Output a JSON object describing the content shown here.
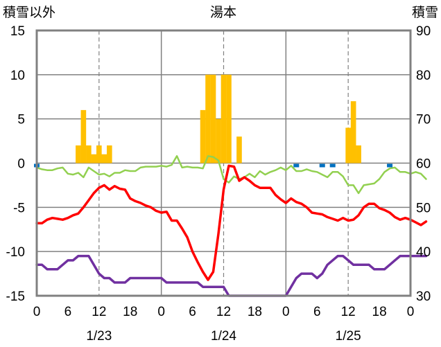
{
  "chart_data": {
    "type": "line",
    "title": "湯本",
    "left_axis_label": "積雪以外",
    "right_axis_label": "積雪",
    "left_ylim": [
      -15,
      15
    ],
    "left_ticks": [
      "15",
      "10",
      "5",
      "0",
      "-5",
      "-10",
      "-15"
    ],
    "right_ylim": [
      30,
      90
    ],
    "right_ticks": [
      "90",
      "80",
      "70",
      "60",
      "50",
      "40",
      "30"
    ],
    "x_hour_ticks": [
      "0",
      "6",
      "12",
      "18",
      "0",
      "6",
      "12",
      "18",
      "0",
      "6",
      "12",
      "18",
      "0"
    ],
    "x_dates": [
      "1/23",
      "1/24",
      "1/25"
    ],
    "grid": true,
    "colors": {
      "precip_bar": "#ffc000",
      "temperature": "#ff0000",
      "green_series": "#92d050",
      "purple_series": "#7030a0",
      "blue_marker": "#0070c0",
      "frame": "#808080"
    },
    "precip_bars": [
      {
        "hour": 8,
        "value": 2
      },
      {
        "hour": 9,
        "value": 6
      },
      {
        "hour": 10,
        "value": 2
      },
      {
        "hour": 11,
        "value": 1
      },
      {
        "hour": 12,
        "value": 2
      },
      {
        "hour": 13,
        "value": 1
      },
      {
        "hour": 14,
        "value": 2
      },
      {
        "hour": 32,
        "value": 6
      },
      {
        "hour": 33,
        "value": 10
      },
      {
        "hour": 34,
        "value": 10
      },
      {
        "hour": 35,
        "value": 5
      },
      {
        "hour": 36,
        "value": 10
      },
      {
        "hour": 37,
        "value": 10
      },
      {
        "hour": 39,
        "value": 3
      },
      {
        "hour": 60,
        "value": 4
      },
      {
        "hour": 61,
        "value": 7
      },
      {
        "hour": 62,
        "value": 2
      }
    ],
    "temperature": [
      [
        0,
        -6.8
      ],
      [
        1,
        -6.8
      ],
      [
        2,
        -6.4
      ],
      [
        3,
        -6.2
      ],
      [
        4,
        -6.3
      ],
      [
        5,
        -6.4
      ],
      [
        6,
        -6.2
      ],
      [
        7,
        -5.9
      ],
      [
        8,
        -5.7
      ],
      [
        9,
        -5
      ],
      [
        10,
        -4.2
      ],
      [
        11,
        -3.4
      ],
      [
        12,
        -2.8
      ],
      [
        13,
        -2.5
      ],
      [
        14,
        -3.0
      ],
      [
        15,
        -2.6
      ],
      [
        16,
        -2.9
      ],
      [
        17,
        -3.0
      ],
      [
        18,
        -4.0
      ],
      [
        19,
        -4.3
      ],
      [
        20,
        -4.5
      ],
      [
        21,
        -4.8
      ],
      [
        22,
        -5.0
      ],
      [
        23,
        -5.4
      ],
      [
        24,
        -5.6
      ],
      [
        25,
        -5.5
      ],
      [
        26,
        -6.5
      ],
      [
        27,
        -6.5
      ],
      [
        28,
        -7.4
      ],
      [
        29,
        -8.4
      ],
      [
        30,
        -10.0
      ],
      [
        31,
        -11.2
      ],
      [
        32,
        -12.3
      ],
      [
        33,
        -13.2
      ],
      [
        34,
        -12.3
      ],
      [
        35,
        -8.0
      ],
      [
        36,
        -3.0
      ],
      [
        37,
        -0.3
      ],
      [
        38,
        -0.4
      ],
      [
        39,
        -2.0
      ],
      [
        40,
        -1.6
      ],
      [
        41,
        -2.0
      ],
      [
        42,
        -2.5
      ],
      [
        43,
        -2.8
      ],
      [
        44,
        -2.8
      ],
      [
        45,
        -2.8
      ],
      [
        46,
        -3.6
      ],
      [
        47,
        -4.1
      ],
      [
        48,
        -4.5
      ],
      [
        49,
        -4.0
      ],
      [
        50,
        -4.4
      ],
      [
        51,
        -4.6
      ],
      [
        52,
        -5.0
      ],
      [
        53,
        -5.6
      ],
      [
        54,
        -5.7
      ],
      [
        55,
        -5.8
      ],
      [
        56,
        -6.1
      ],
      [
        57,
        -6.3
      ],
      [
        58,
        -6.5
      ],
      [
        59,
        -6.2
      ],
      [
        60,
        -6.5
      ],
      [
        61,
        -6.4
      ],
      [
        62,
        -5.9
      ],
      [
        63,
        -5.0
      ],
      [
        64,
        -4.6
      ],
      [
        65,
        -4.6
      ],
      [
        66,
        -5.1
      ],
      [
        67,
        -5.3
      ],
      [
        68,
        -5.6
      ],
      [
        69,
        -6.1
      ],
      [
        70,
        -6.4
      ],
      [
        71,
        -6.2
      ],
      [
        72,
        -6.4
      ],
      [
        73,
        -6.7
      ],
      [
        74,
        -7.0
      ],
      [
        75,
        -6.6
      ]
    ],
    "green_series": [
      [
        0,
        -0.5
      ],
      [
        1,
        -0.7
      ],
      [
        2,
        -0.8
      ],
      [
        3,
        -0.8
      ],
      [
        4,
        -0.6
      ],
      [
        5,
        -0.5
      ],
      [
        6,
        -1.2
      ],
      [
        7,
        -1.3
      ],
      [
        8,
        -1.1
      ],
      [
        9,
        -1.6
      ],
      [
        10,
        -0.5
      ],
      [
        11,
        -0.9
      ],
      [
        12,
        -1.3
      ],
      [
        13,
        -1.2
      ],
      [
        14,
        -1.5
      ],
      [
        15,
        -1.1
      ],
      [
        16,
        -1.1
      ],
      [
        17,
        -0.8
      ],
      [
        18,
        -0.9
      ],
      [
        19,
        -0.9
      ],
      [
        20,
        -0.5
      ],
      [
        21,
        -0.4
      ],
      [
        22,
        -0.4
      ],
      [
        23,
        -0.4
      ],
      [
        24,
        -0.3
      ],
      [
        25,
        -0.4
      ],
      [
        26,
        -0.2
      ],
      [
        27,
        0.8
      ],
      [
        28,
        -0.5
      ],
      [
        29,
        -0.4
      ],
      [
        30,
        -0.5
      ],
      [
        31,
        -0.5
      ],
      [
        32,
        -0.6
      ],
      [
        33,
        0.8
      ],
      [
        34,
        0.7
      ],
      [
        35,
        0.3
      ],
      [
        36,
        -1.8
      ],
      [
        37,
        -2.2
      ],
      [
        38,
        -1.5
      ],
      [
        39,
        -1.8
      ],
      [
        40,
        -1.6
      ],
      [
        41,
        -1.2
      ],
      [
        42,
        -1.6
      ],
      [
        43,
        -0.9
      ],
      [
        44,
        -1.3
      ],
      [
        45,
        -1.0
      ],
      [
        46,
        -0.8
      ],
      [
        47,
        -0.5
      ],
      [
        48,
        -0.8
      ],
      [
        49,
        -0.3
      ],
      [
        50,
        -0.9
      ],
      [
        51,
        -0.9
      ],
      [
        52,
        -0.7
      ],
      [
        53,
        -0.9
      ],
      [
        54,
        -1.0
      ],
      [
        55,
        -1.3
      ],
      [
        56,
        -1.6
      ],
      [
        57,
        -1.0
      ],
      [
        58,
        -1.0
      ],
      [
        59,
        -1.5
      ],
      [
        60,
        -2.5
      ],
      [
        61,
        -2.5
      ],
      [
        62,
        -3.4
      ],
      [
        63,
        -2.5
      ],
      [
        64,
        -2.4
      ],
      [
        65,
        -2.3
      ],
      [
        66,
        -1.8
      ],
      [
        67,
        -1.0
      ],
      [
        68,
        -0.6
      ],
      [
        69,
        -0.5
      ],
      [
        70,
        -1.0
      ],
      [
        71,
        -1.0
      ],
      [
        72,
        -1.2
      ],
      [
        73,
        -1.0
      ],
      [
        74,
        -1.2
      ],
      [
        75,
        -1.8
      ]
    ],
    "purple_series": [
      [
        0,
        -11.5
      ],
      [
        1,
        -11.5
      ],
      [
        2,
        -12.0
      ],
      [
        3,
        -12.0
      ],
      [
        4,
        -12.0
      ],
      [
        5,
        -11.5
      ],
      [
        6,
        -11.0
      ],
      [
        7,
        -11.0
      ],
      [
        8,
        -10.5
      ],
      [
        9,
        -10.5
      ],
      [
        10,
        -10.5
      ],
      [
        11,
        -11.5
      ],
      [
        12,
        -12.5
      ],
      [
        13,
        -13.0
      ],
      [
        14,
        -13.0
      ],
      [
        15,
        -13.5
      ],
      [
        16,
        -13.5
      ],
      [
        17,
        -13.5
      ],
      [
        18,
        -13.0
      ],
      [
        19,
        -13.0
      ],
      [
        20,
        -13.0
      ],
      [
        21,
        -13.0
      ],
      [
        22,
        -13.0
      ],
      [
        23,
        -13.0
      ],
      [
        24,
        -13.0
      ],
      [
        25,
        -13.5
      ],
      [
        26,
        -13.5
      ],
      [
        27,
        -13.5
      ],
      [
        28,
        -13.5
      ],
      [
        29,
        -13.5
      ],
      [
        30,
        -13.5
      ],
      [
        31,
        -13.5
      ],
      [
        32,
        -14.0
      ],
      [
        33,
        -14.0
      ],
      [
        34,
        -14.0
      ],
      [
        35,
        -14.0
      ],
      [
        36,
        -14.0
      ],
      [
        37,
        -15.0
      ],
      [
        38,
        -15.0
      ],
      [
        39,
        -15.0
      ],
      [
        40,
        -15.0
      ],
      [
        41,
        -15.0
      ],
      [
        42,
        -15.0
      ],
      [
        43,
        -15.0
      ],
      [
        44,
        -15.0
      ],
      [
        45,
        -15.0
      ],
      [
        46,
        -15.0
      ],
      [
        47,
        -15.0
      ],
      [
        48,
        -15.0
      ],
      [
        49,
        -14.0
      ],
      [
        50,
        -13.0
      ],
      [
        51,
        -12.5
      ],
      [
        52,
        -12.5
      ],
      [
        53,
        -12.5
      ],
      [
        54,
        -13.0
      ],
      [
        55,
        -12.5
      ],
      [
        56,
        -11.5
      ],
      [
        57,
        -11.0
      ],
      [
        58,
        -10.5
      ],
      [
        59,
        -10.5
      ],
      [
        60,
        -11.0
      ],
      [
        61,
        -11.5
      ],
      [
        62,
        -11.5
      ],
      [
        63,
        -11.5
      ],
      [
        64,
        -11.5
      ],
      [
        65,
        -12.0
      ],
      [
        66,
        -12.0
      ],
      [
        67,
        -12.0
      ],
      [
        68,
        -11.5
      ],
      [
        69,
        -11.0
      ],
      [
        70,
        -10.5
      ],
      [
        71,
        -10.5
      ],
      [
        72,
        -10.5
      ],
      [
        73,
        -10.5
      ],
      [
        74,
        -10.5
      ],
      [
        75,
        -10.5
      ]
    ],
    "blue_markers": [
      0,
      50,
      55,
      57,
      68
    ]
  }
}
